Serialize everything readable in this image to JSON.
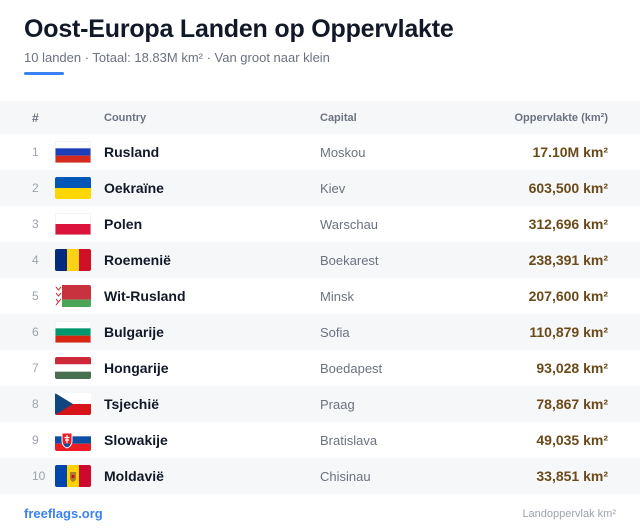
{
  "header": {
    "title": "Oost-Europa Landen op Oppervlakte",
    "subtitle": "10 landen · Totaal: 18.83M km² · Van groot naar klein"
  },
  "colors": {
    "accent": "#3b82f6",
    "area_text": "#6b4a1a",
    "row_alt": "#f6f7f9"
  },
  "table": {
    "columns": {
      "num": "#",
      "country": "Country",
      "capital": "Capital",
      "area": "Oppervlakte (km²)"
    },
    "rows": [
      {
        "num": "1",
        "country": "Rusland",
        "capital": "Moskou",
        "area": "17.10M km²",
        "flag": "flag-russia-icon"
      },
      {
        "num": "2",
        "country": "Oekraïne",
        "capital": "Kiev",
        "area": "603,500 km²",
        "flag": "flag-ukraine-icon"
      },
      {
        "num": "3",
        "country": "Polen",
        "capital": "Warschau",
        "area": "312,696 km²",
        "flag": "flag-poland-icon"
      },
      {
        "num": "4",
        "country": "Roemenië",
        "capital": "Boekarest",
        "area": "238,391 km²",
        "flag": "flag-romania-icon"
      },
      {
        "num": "5",
        "country": "Wit-Rusland",
        "capital": "Minsk",
        "area": "207,600 km²",
        "flag": "flag-belarus-icon"
      },
      {
        "num": "6",
        "country": "Bulgarije",
        "capital": "Sofia",
        "area": "110,879 km²",
        "flag": "flag-bulgaria-icon"
      },
      {
        "num": "7",
        "country": "Hongarije",
        "capital": "Boedapest",
        "area": "93,028 km²",
        "flag": "flag-hungary-icon"
      },
      {
        "num": "8",
        "country": "Tsjechië",
        "capital": "Praag",
        "area": "78,867 km²",
        "flag": "flag-czechia-icon"
      },
      {
        "num": "9",
        "country": "Slowakije",
        "capital": "Bratislava",
        "area": "49,035 km²",
        "flag": "flag-slovakia-icon"
      },
      {
        "num": "10",
        "country": "Moldavië",
        "capital": "Chisinau",
        "area": "33,851 km²",
        "flag": "flag-moldova-icon"
      }
    ]
  },
  "footer": {
    "brand": "freeflags.org",
    "note": "Landoppervlak km²"
  }
}
